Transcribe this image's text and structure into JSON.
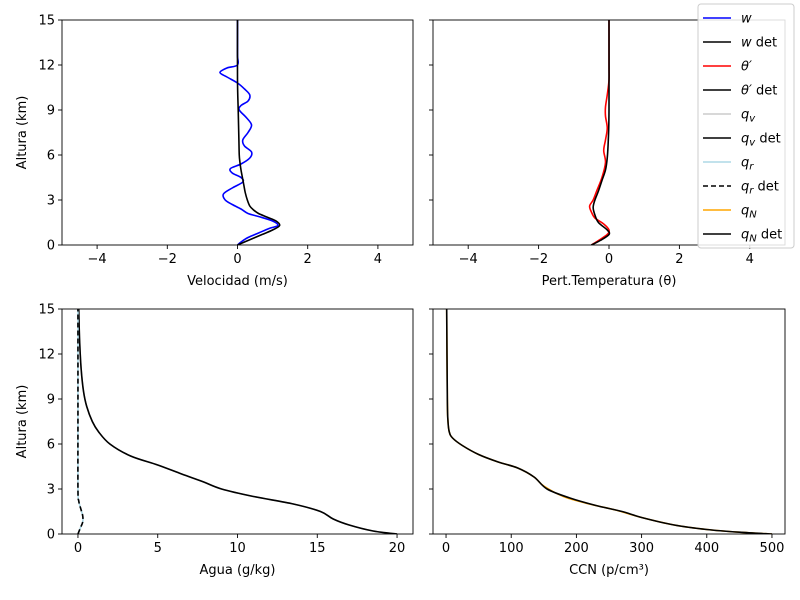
{
  "chart_data": [
    {
      "type": "line",
      "panel": "top-left",
      "xlabel": "Velocidad (m/s)",
      "ylabel": "Altura (km)",
      "xlim": [
        -5,
        5
      ],
      "ylim": [
        0,
        15
      ],
      "xticks": [
        -4,
        -2,
        0,
        2,
        4
      ],
      "yticks": [
        0,
        3,
        6,
        9,
        12,
        15
      ],
      "series": [
        {
          "key": "w",
          "color": "#0000ff",
          "x": [
            0.0,
            0.1,
            0.3,
            0.6,
            0.9,
            1.15,
            1.0,
            0.6,
            0.3,
            0.1,
            -0.15,
            -0.35,
            -0.4,
            -0.15,
            0.15,
            0.1,
            -0.15,
            -0.2,
            0.1,
            0.35,
            0.4,
            0.2,
            0.15,
            0.3,
            0.4,
            0.25,
            0.05,
            0.1,
            0.3,
            0.35,
            0.2,
            0.0,
            -0.3,
            -0.5,
            -0.3,
            0.0,
            0.0,
            0.0,
            0.0
          ],
          "y": [
            0.0,
            0.2,
            0.5,
            0.8,
            1.1,
            1.3,
            1.6,
            1.9,
            2.1,
            2.4,
            2.7,
            3.0,
            3.4,
            3.8,
            4.2,
            4.5,
            4.8,
            5.1,
            5.4,
            5.8,
            6.2,
            6.6,
            7.0,
            7.5,
            8.0,
            8.5,
            9.0,
            9.3,
            9.6,
            10.0,
            10.4,
            10.8,
            11.2,
            11.5,
            11.8,
            12.0,
            12.6,
            13.5,
            15.0
          ]
        },
        {
          "key": "w_det",
          "color": "#000000",
          "x": [
            0.0,
            0.3,
            0.7,
            1.0,
            1.2,
            1.1,
            0.85,
            0.6,
            0.45,
            0.35,
            0.28,
            0.22,
            0.18,
            0.14,
            0.1,
            0.07,
            0.05,
            0.04,
            0.03,
            0.02,
            0.0,
            0.0
          ],
          "y": [
            0.0,
            0.3,
            0.7,
            1.0,
            1.3,
            1.6,
            1.85,
            2.1,
            2.35,
            2.6,
            3.0,
            3.5,
            4.0,
            4.5,
            5.0,
            5.5,
            6.0,
            7.0,
            8.0,
            9.0,
            11.0,
            15.0
          ]
        }
      ]
    },
    {
      "type": "line",
      "panel": "top-right",
      "xlabel": "Pert.Temperatura (θ)",
      "ylabel": "",
      "xlim": [
        -5,
        5
      ],
      "ylim": [
        0,
        15
      ],
      "xticks": [
        -4,
        -2,
        0,
        2,
        4
      ],
      "yticks": [
        0,
        3,
        6,
        9,
        12,
        15
      ],
      "series": [
        {
          "key": "theta",
          "color": "#ff0000",
          "x": [
            -0.5,
            -0.3,
            -0.05,
            0.0,
            -0.15,
            -0.4,
            -0.5,
            -0.55,
            -0.45,
            -0.35,
            -0.2,
            -0.1,
            -0.15,
            -0.1,
            -0.05,
            -0.1,
            -0.1,
            -0.05,
            0.0,
            0.0,
            0.0
          ],
          "y": [
            0.0,
            0.3,
            0.7,
            1.0,
            1.4,
            1.8,
            2.2,
            2.6,
            3.0,
            3.6,
            4.5,
            5.5,
            6.3,
            7.0,
            7.8,
            8.6,
            9.2,
            10.0,
            11.0,
            12.0,
            15.0
          ]
        },
        {
          "key": "theta_det",
          "color": "#000000",
          "x": [
            -0.5,
            -0.25,
            0.0,
            -0.05,
            -0.3,
            -0.4,
            -0.45,
            -0.4,
            -0.3,
            -0.2,
            -0.1,
            -0.05,
            -0.02,
            0.0,
            0.0
          ],
          "y": [
            0.0,
            0.3,
            0.7,
            1.0,
            1.5,
            2.0,
            2.5,
            3.0,
            3.6,
            4.3,
            5.0,
            5.8,
            7.0,
            9.0,
            15.0
          ]
        }
      ]
    },
    {
      "type": "line",
      "panel": "bottom-left",
      "xlabel": "Agua (g/kg)",
      "ylabel": "Altura (km)",
      "xlim": [
        -1,
        21
      ],
      "ylim": [
        0,
        15
      ],
      "xticks": [
        0,
        5,
        10,
        15,
        20
      ],
      "yticks": [
        0,
        3,
        6,
        9,
        12,
        15
      ],
      "series": [
        {
          "key": "qv",
          "color": "#cccccc",
          "x": [
            20.0,
            18.5,
            17.0,
            16.0,
            15.2,
            13.5,
            11.0,
            9.0,
            7.8,
            6.5,
            5.0,
            3.3,
            2.0,
            1.3,
            0.9,
            0.55,
            0.35,
            0.2,
            0.1,
            0.05
          ],
          "y": [
            0.0,
            0.2,
            0.6,
            1.0,
            1.5,
            2.0,
            2.5,
            3.0,
            3.5,
            4.0,
            4.6,
            5.2,
            6.0,
            6.8,
            7.5,
            8.5,
            9.5,
            11.0,
            13.0,
            15.0
          ]
        },
        {
          "key": "qv_det",
          "color": "#000000",
          "x": [
            20.0,
            18.5,
            17.0,
            16.0,
            15.2,
            13.5,
            11.0,
            9.0,
            7.8,
            6.5,
            5.0,
            3.3,
            2.0,
            1.3,
            0.9,
            0.55,
            0.35,
            0.2,
            0.1,
            0.05
          ],
          "y": [
            0.0,
            0.2,
            0.6,
            1.0,
            1.5,
            2.0,
            2.5,
            3.0,
            3.5,
            4.0,
            4.6,
            5.2,
            6.0,
            6.8,
            7.5,
            8.5,
            9.5,
            11.0,
            13.0,
            15.0
          ]
        },
        {
          "key": "qr",
          "color": "#add8e6",
          "x": [
            0.0,
            0.15,
            0.3,
            0.3,
            0.2,
            0.05,
            0.0,
            0.0,
            0.0
          ],
          "y": [
            0.0,
            0.4,
            0.8,
            1.2,
            1.6,
            2.2,
            3.0,
            8.0,
            15.0
          ]
        },
        {
          "key": "qr_det",
          "color": "#000000",
          "dashed": true,
          "x": [
            0.0,
            0.15,
            0.3,
            0.3,
            0.2,
            0.05,
            0.0,
            0.0,
            0.0
          ],
          "y": [
            0.0,
            0.4,
            0.8,
            1.2,
            1.6,
            2.2,
            3.0,
            8.0,
            15.0
          ]
        }
      ]
    },
    {
      "type": "line",
      "panel": "bottom-right",
      "xlabel": "CCN (p/cm³)",
      "ylabel": "",
      "xlim": [
        -20,
        520
      ],
      "ylim": [
        0,
        15
      ],
      "xticks": [
        0,
        100,
        200,
        300,
        400,
        500
      ],
      "yticks": [
        0,
        3,
        6,
        9,
        12,
        15
      ],
      "series": [
        {
          "key": "qN",
          "color": "#ffa500",
          "x": [
            500,
            450,
            400,
            350,
            300,
            260,
            220,
            180,
            150,
            135,
            110,
            80,
            50,
            25,
            10,
            5,
            3,
            2,
            1
          ],
          "y": [
            0.0,
            0.12,
            0.3,
            0.6,
            1.1,
            1.6,
            2.0,
            2.5,
            3.2,
            3.8,
            4.4,
            4.8,
            5.3,
            5.9,
            6.4,
            6.8,
            7.5,
            9.0,
            15.0
          ]
        },
        {
          "key": "qN_det",
          "color": "#000000",
          "x": [
            500,
            450,
            400,
            350,
            300,
            270,
            230,
            190,
            155,
            135,
            110,
            80,
            50,
            25,
            10,
            5,
            3,
            2,
            1
          ],
          "y": [
            0.0,
            0.12,
            0.3,
            0.6,
            1.1,
            1.5,
            1.9,
            2.4,
            3.0,
            3.8,
            4.4,
            4.8,
            5.3,
            5.9,
            6.4,
            6.8,
            7.5,
            9.0,
            15.0
          ]
        }
      ]
    }
  ],
  "legend": {
    "placement": "top-right",
    "entries": [
      {
        "key": "w",
        "label": "w",
        "suffix": "",
        "color": "#0000ff"
      },
      {
        "key": "w_det",
        "label": "w",
        "suffix": " det",
        "color": "#000000"
      },
      {
        "key": "theta",
        "label": "θ′",
        "suffix": "",
        "color": "#ff0000"
      },
      {
        "key": "theta_det",
        "label": "θ′",
        "suffix": " det",
        "color": "#000000"
      },
      {
        "key": "qv",
        "label": "q",
        "sub": "v",
        "suffix": "",
        "color": "#cccccc"
      },
      {
        "key": "qv_det",
        "label": "q",
        "sub": "v",
        "suffix": " det",
        "color": "#000000"
      },
      {
        "key": "qr",
        "label": "q",
        "sub": "r",
        "suffix": "",
        "color": "#add8e6"
      },
      {
        "key": "qr_det",
        "label": "q",
        "sub": "r",
        "suffix": " det",
        "color": "#000000",
        "dashed": true
      },
      {
        "key": "qN",
        "label": "q",
        "sub": "N",
        "suffix": "",
        "color": "#ffa500"
      },
      {
        "key": "qN_det",
        "label": "q",
        "sub": "N",
        "suffix": " det",
        "color": "#000000"
      }
    ]
  }
}
